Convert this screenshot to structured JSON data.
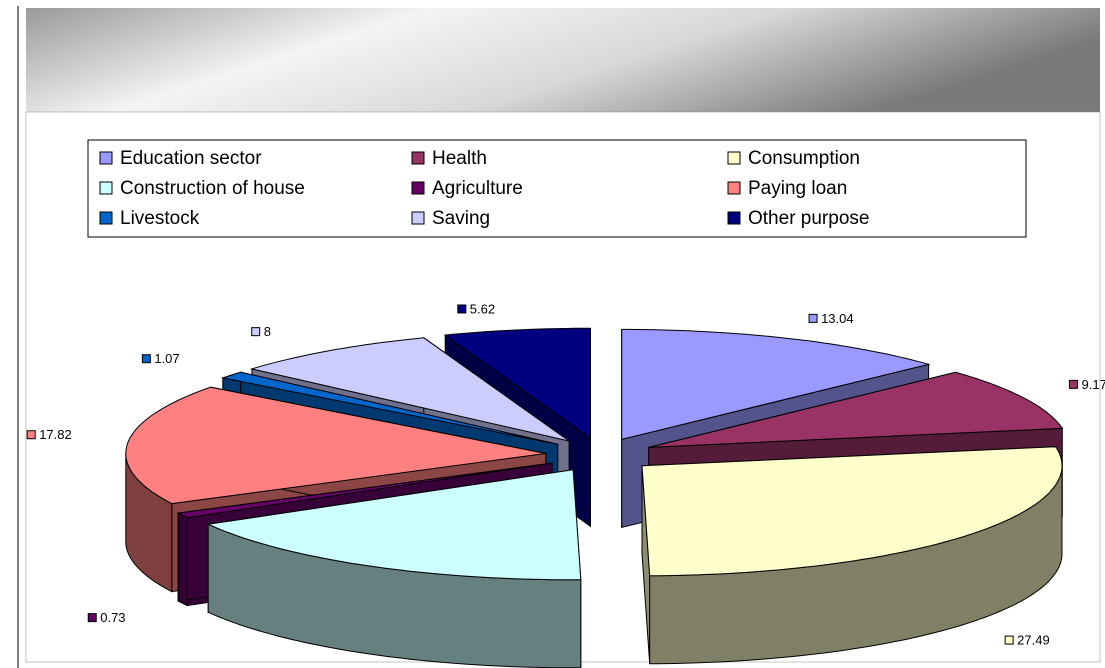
{
  "chart_data": {
    "type": "pie",
    "categories": [
      "Education sector",
      "Health",
      "Consumption",
      "Construction of house",
      "Agriculture",
      "Paying loan",
      "Livestock",
      "Saving",
      "Other purpose"
    ],
    "values": [
      13.04,
      9.17,
      27.49,
      17.04,
      0.73,
      17.82,
      1.07,
      8,
      5.62
    ],
    "colors": [
      "#9999ff",
      "#993366",
      "#ffffcc",
      "#ccffff",
      "#660066",
      "#ff8080",
      "#0066cc",
      "#ccccff",
      "#000080"
    ],
    "exploded": true,
    "three_d": true
  }
}
